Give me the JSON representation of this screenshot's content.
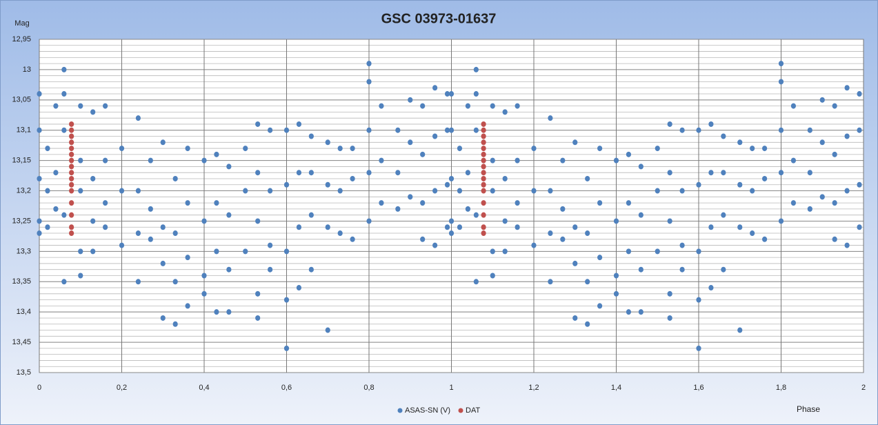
{
  "chart_data": {
    "type": "scatter",
    "title": "GSC 03973-01637",
    "y_label": "Mag",
    "x_label": "Phase",
    "xlim": [
      0,
      2
    ],
    "ylim": [
      13.5,
      12.95
    ],
    "xticks": [
      0,
      {
        "value": 0.2,
        "label": "0,2"
      },
      {
        "value": 0.4,
        "label": "0,4"
      },
      {
        "value": 0.6,
        "label": "0,6"
      },
      {
        "value": 0.8,
        "label": "0,8"
      },
      1,
      {
        "value": 1.2,
        "label": "1,2"
      },
      {
        "value": 1.4,
        "label": "1,4"
      },
      {
        "value": 1.6,
        "label": "1,6"
      },
      {
        "value": 1.8,
        "label": "1,8"
      },
      2
    ],
    "yticks": [
      {
        "value": 12.95,
        "label": "12,95"
      },
      13,
      {
        "value": 13.05,
        "label": "13,05"
      },
      {
        "value": 13.1,
        "label": "13,1"
      },
      {
        "value": 13.15,
        "label": "13,15"
      },
      {
        "value": 13.2,
        "label": "13,2"
      },
      {
        "value": 13.25,
        "label": "13,25"
      },
      {
        "value": 13.3,
        "label": "13,3"
      },
      {
        "value": 13.35,
        "label": "13,35"
      },
      {
        "value": 13.4,
        "label": "13,4"
      },
      {
        "value": 13.45,
        "label": "13,45"
      },
      {
        "value": 13.5,
        "label": "13,5"
      }
    ],
    "y_minor_step": 0.01,
    "grid": true,
    "legend": "bottom",
    "series": [
      {
        "name": "ASAS-SN (V)",
        "color": "#4f81bd",
        "x": [
          0,
          0,
          0,
          0,
          0,
          0.02,
          0.02,
          0.02,
          0.04,
          0.04,
          0.04,
          0.06,
          0.06,
          0.06,
          0.06,
          0.06,
          0.1,
          0.1,
          0.1,
          0.1,
          0.1,
          0.13,
          0.13,
          0.13,
          0.13,
          0.16,
          0.16,
          0.16,
          0.16,
          0.2,
          0.2,
          0.2,
          0.24,
          0.24,
          0.24,
          0.24,
          0.27,
          0.27,
          0.27,
          0.3,
          0.3,
          0.3,
          0.3,
          0.33,
          0.33,
          0.33,
          0.33,
          0.36,
          0.36,
          0.36,
          0.36,
          0.4,
          0.4,
          0.4,
          0.4,
          0.43,
          0.43,
          0.43,
          0.43,
          0.46,
          0.46,
          0.46,
          0.46,
          0.5,
          0.5,
          0.5,
          0.53,
          0.53,
          0.53,
          0.53,
          0.53,
          0.56,
          0.56,
          0.56,
          0.56,
          0.6,
          0.6,
          0.6,
          0.6,
          0.6,
          0.63,
          0.63,
          0.63,
          0.63,
          0.66,
          0.66,
          0.66,
          0.66,
          0.7,
          0.7,
          0.7,
          0.7,
          0.73,
          0.73,
          0.73,
          0.76,
          0.76,
          0.76,
          0.8,
          0.8,
          0.8,
          0.8,
          0.8,
          0.83,
          0.83,
          0.83,
          0.87,
          0.87,
          0.87,
          0.9,
          0.9,
          0.9,
          0.93,
          0.93,
          0.93,
          0.93,
          0.96,
          0.96,
          0.96,
          0.96,
          0.99,
          0.99,
          0.99,
          0.99,
          1,
          1,
          1,
          1,
          1,
          1.02,
          1.02,
          1.02,
          1.04,
          1.04,
          1.04,
          1.06,
          1.06,
          1.06,
          1.06,
          1.06,
          1.1,
          1.1,
          1.1,
          1.1,
          1.1,
          1.13,
          1.13,
          1.13,
          1.13,
          1.16,
          1.16,
          1.16,
          1.16,
          1.2,
          1.2,
          1.2,
          1.24,
          1.24,
          1.24,
          1.24,
          1.27,
          1.27,
          1.27,
          1.3,
          1.3,
          1.3,
          1.3,
          1.33,
          1.33,
          1.33,
          1.33,
          1.36,
          1.36,
          1.36,
          1.36,
          1.4,
          1.4,
          1.4,
          1.4,
          1.43,
          1.43,
          1.43,
          1.43,
          1.46,
          1.46,
          1.46,
          1.46,
          1.5,
          1.5,
          1.5,
          1.53,
          1.53,
          1.53,
          1.53,
          1.53,
          1.56,
          1.56,
          1.56,
          1.56,
          1.6,
          1.6,
          1.6,
          1.6,
          1.6,
          1.63,
          1.63,
          1.63,
          1.63,
          1.66,
          1.66,
          1.66,
          1.66,
          1.7,
          1.7,
          1.7,
          1.7,
          1.73,
          1.73,
          1.73,
          1.76,
          1.76,
          1.76,
          1.8,
          1.8,
          1.8,
          1.8,
          1.8,
          1.83,
          1.83,
          1.83,
          1.87,
          1.87,
          1.87,
          1.9,
          1.9,
          1.9,
          1.93,
          1.93,
          1.93,
          1.93,
          1.96,
          1.96,
          1.96,
          1.96,
          1.99,
          1.99,
          1.99,
          1.99
        ],
        "values": [
          13.04,
          13.1,
          13.18,
          13.25,
          13.27,
          13.13,
          13.2,
          13.26,
          13.06,
          13.17,
          13.23,
          13,
          13.04,
          13.1,
          13.24,
          13.35,
          13.06,
          13.15,
          13.2,
          13.3,
          13.34,
          13.07,
          13.18,
          13.25,
          13.3,
          13.06,
          13.15,
          13.22,
          13.26,
          13.13,
          13.2,
          13.29,
          13.08,
          13.2,
          13.27,
          13.35,
          13.15,
          13.23,
          13.28,
          13.12,
          13.26,
          13.32,
          13.41,
          13.18,
          13.27,
          13.35,
          13.42,
          13.13,
          13.22,
          13.31,
          13.39,
          13.15,
          13.25,
          13.34,
          13.37,
          13.14,
          13.22,
          13.3,
          13.4,
          13.16,
          13.24,
          13.33,
          13.4,
          13.13,
          13.2,
          13.3,
          13.09,
          13.17,
          13.25,
          13.37,
          13.41,
          13.1,
          13.2,
          13.29,
          13.33,
          13.1,
          13.19,
          13.3,
          13.38,
          13.46,
          13.09,
          13.17,
          13.26,
          13.36,
          13.11,
          13.17,
          13.24,
          13.33,
          13.12,
          13.19,
          13.26,
          13.43,
          13.13,
          13.2,
          13.27,
          13.13,
          13.18,
          13.28,
          12.99,
          13.02,
          13.1,
          13.17,
          13.25,
          13.06,
          13.15,
          13.22,
          13.1,
          13.17,
          13.23,
          13.05,
          13.12,
          13.21,
          13.06,
          13.14,
          13.22,
          13.28,
          13.03,
          13.11,
          13.2,
          13.29,
          13.04,
          13.1,
          13.19,
          13.26,
          13.04,
          13.1,
          13.18,
          13.25,
          13.27,
          13.13,
          13.2,
          13.26,
          13.06,
          13.17,
          13.23,
          13,
          13.04,
          13.1,
          13.24,
          13.35,
          13.06,
          13.15,
          13.2,
          13.3,
          13.34,
          13.07,
          13.18,
          13.25,
          13.3,
          13.06,
          13.15,
          13.22,
          13.26,
          13.13,
          13.2,
          13.29,
          13.08,
          13.2,
          13.27,
          13.35,
          13.15,
          13.23,
          13.28,
          13.12,
          13.26,
          13.32,
          13.41,
          13.18,
          13.27,
          13.35,
          13.42,
          13.13,
          13.22,
          13.31,
          13.39,
          13.15,
          13.25,
          13.34,
          13.37,
          13.14,
          13.22,
          13.3,
          13.4,
          13.16,
          13.24,
          13.33,
          13.4,
          13.13,
          13.2,
          13.3,
          13.09,
          13.17,
          13.25,
          13.37,
          13.41,
          13.1,
          13.2,
          13.29,
          13.33,
          13.1,
          13.19,
          13.3,
          13.38,
          13.46,
          13.09,
          13.17,
          13.26,
          13.36,
          13.11,
          13.17,
          13.24,
          13.33,
          13.12,
          13.19,
          13.26,
          13.43,
          13.13,
          13.2,
          13.27,
          13.13,
          13.18,
          13.28,
          12.99,
          13.02,
          13.1,
          13.17,
          13.25,
          13.06,
          13.15,
          13.22,
          13.1,
          13.17,
          13.23,
          13.05,
          13.12,
          13.21,
          13.06,
          13.14,
          13.22,
          13.28,
          13.03,
          13.11,
          13.2,
          13.29,
          13.04,
          13.1,
          13.19,
          13.26
        ]
      },
      {
        "name": "DAT",
        "color": "#c0504d",
        "x": [
          0.078,
          0.078,
          0.078,
          0.078,
          0.078,
          0.078,
          0.078,
          0.078,
          0.078,
          0.078,
          0.078,
          0.078,
          0.078,
          0.078,
          0.078,
          0.078,
          1.078,
          1.078,
          1.078,
          1.078,
          1.078,
          1.078,
          1.078,
          1.078,
          1.078,
          1.078,
          1.078,
          1.078,
          1.078,
          1.078,
          1.078,
          1.078
        ],
        "values": [
          13.09,
          13.1,
          13.11,
          13.12,
          13.13,
          13.14,
          13.15,
          13.16,
          13.17,
          13.18,
          13.19,
          13.2,
          13.22,
          13.24,
          13.26,
          13.27,
          13.09,
          13.1,
          13.11,
          13.12,
          13.13,
          13.14,
          13.15,
          13.16,
          13.17,
          13.18,
          13.19,
          13.2,
          13.22,
          13.24,
          13.26,
          13.27
        ]
      }
    ]
  }
}
